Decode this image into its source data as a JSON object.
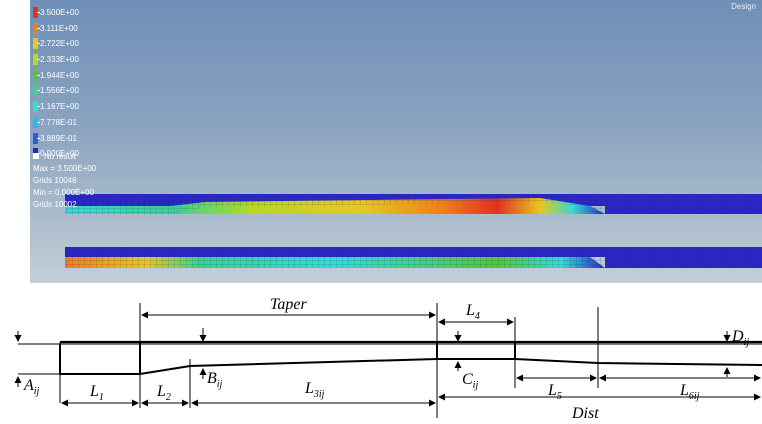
{
  "viewport": {
    "corner_label": "Design",
    "legend": [
      {
        "label": "3.500E+00",
        "color": "#e23020"
      },
      {
        "label": "3.111E+00",
        "color": "#ef7f1a"
      },
      {
        "label": "2.722E+00",
        "color": "#e6c81f"
      },
      {
        "label": "2.333E+00",
        "color": "#b7d922"
      },
      {
        "label": "1.944E+00",
        "color": "#52c83a"
      },
      {
        "label": "1.556E+00",
        "color": "#39d38e"
      },
      {
        "label": "1.167E+00",
        "color": "#33dbd4"
      },
      {
        "label": "7.778E-01",
        "color": "#28b7e9"
      },
      {
        "label": "3.889E-01",
        "color": "#2b5fd6"
      },
      {
        "label": "0.000E+00",
        "color": "#2a26c9"
      }
    ],
    "no_result": "No result",
    "max_value": "Max = 3.500E+00",
    "max_grid": "Grids 10046",
    "min_value": "Min = 0.000E+00",
    "min_grid": "Grids 10002"
  },
  "schematic": {
    "labels": {
      "taper": "Taper",
      "L1": "L",
      "L1_sub": "1",
      "L2": "L",
      "L2_sub": "2",
      "L3": "L",
      "L3_sub": "3ij",
      "L4": "L",
      "L4_sub": "4",
      "L5": "L",
      "L5_sub": "5",
      "L6": "L",
      "L6_sub": "6ij",
      "A": "A",
      "A_sub": "ij",
      "B": "B",
      "B_sub": "ij",
      "C": "C",
      "C_sub": "ij",
      "D": "D",
      "D_sub": "ij",
      "dist": "Dist"
    }
  }
}
